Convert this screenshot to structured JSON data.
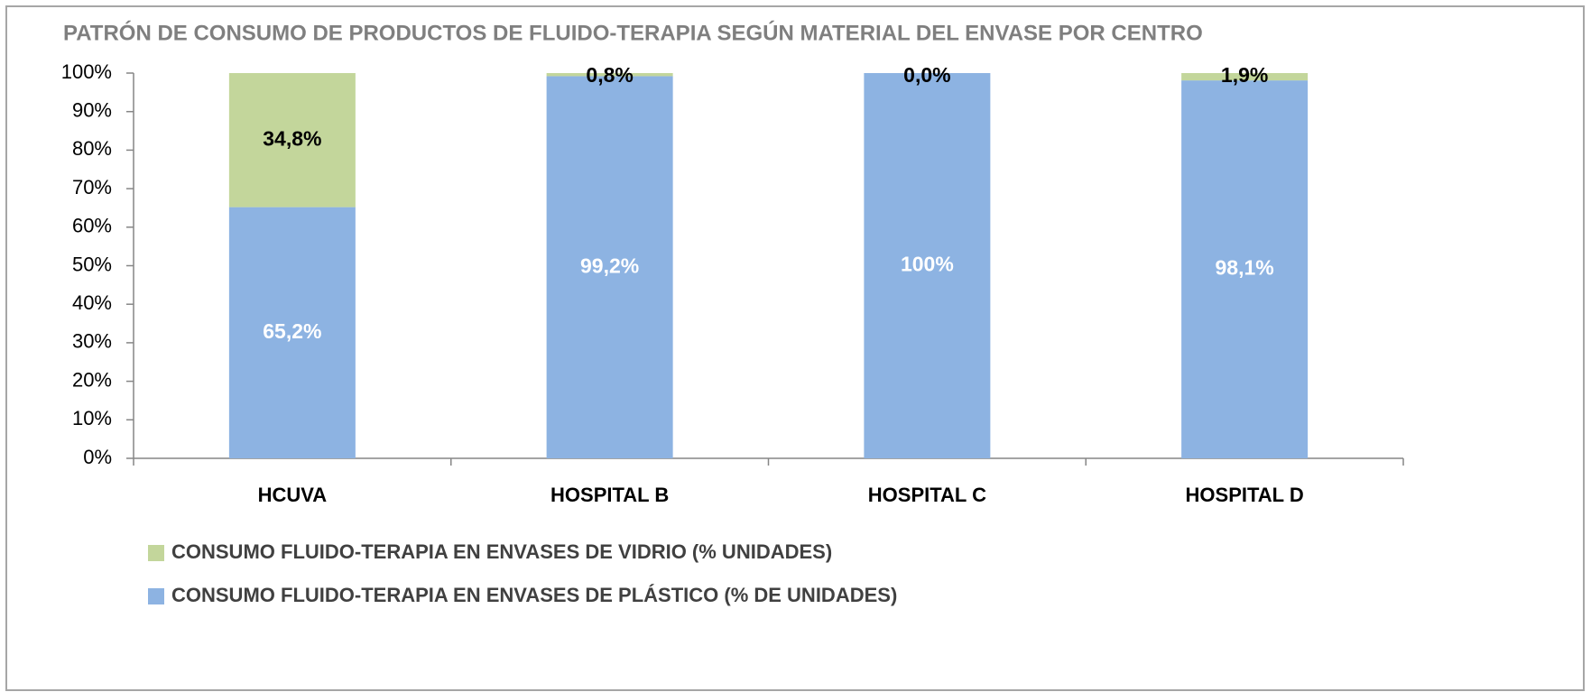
{
  "chart_data": {
    "type": "stacked_bar",
    "title": "PATRÓN DE CONSUMO DE PRODUCTOS DE FLUIDO-TERAPIA SEGÚN MATERIAL DEL ENVASE POR CENTRO",
    "categories": [
      "HCUVA",
      "HOSPITAL B",
      "HOSPITAL C",
      "HOSPITAL D"
    ],
    "series": [
      {
        "name": "CONSUMO FLUIDO-TERAPIA EN ENVASES DE PLÁSTICO (% DE UNIDADES)",
        "color": "#8db3e2",
        "values": [
          65.2,
          99.2,
          100,
          98.1
        ],
        "value_labels": [
          "65,2%",
          "99,2%",
          "100%",
          "98,1%"
        ]
      },
      {
        "name": "CONSUMO FLUIDO-TERAPIA EN ENVASES DE VIDRIO (% UNIDADES)",
        "color": "#c3d69b",
        "values": [
          34.8,
          0.8,
          0.0,
          1.9
        ],
        "value_labels": [
          "34,8%",
          "0,8%",
          "0,0%",
          "1,9%"
        ]
      }
    ],
    "ylim": [
      0,
      100
    ],
    "yticks": [
      {
        "value": 0,
        "label": "0%"
      },
      {
        "value": 10,
        "label": "10%"
      },
      {
        "value": 20,
        "label": "20%"
      },
      {
        "value": 30,
        "label": "30%"
      },
      {
        "value": 40,
        "label": "40%"
      },
      {
        "value": 50,
        "label": "50%"
      },
      {
        "value": 60,
        "label": "60%"
      },
      {
        "value": 70,
        "label": "70%"
      },
      {
        "value": 80,
        "label": "80%"
      },
      {
        "value": 90,
        "label": "90%"
      },
      {
        "value": 100,
        "label": "100%"
      }
    ],
    "grid": false,
    "legend": "bottom"
  }
}
